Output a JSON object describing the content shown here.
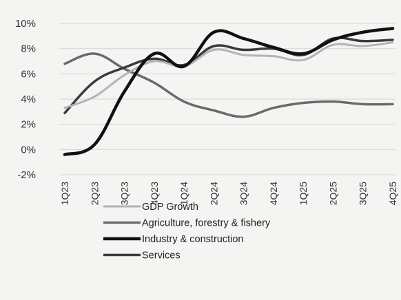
{
  "chart_data": {
    "type": "line",
    "categories": [
      "1Q23",
      "2Q23",
      "3Q23",
      "4Q23",
      "1Q24",
      "2Q24",
      "3Q24",
      "4Q24",
      "1Q25",
      "2Q25",
      "3Q25",
      "4Q25"
    ],
    "y_ticks": [
      "10%",
      "8%",
      "6%",
      "4%",
      "2%",
      "0%",
      "-2%"
    ],
    "y_tick_values": [
      10,
      8,
      6,
      4,
      2,
      0,
      -2
    ],
    "ylim": [
      -2,
      10
    ],
    "grid": true,
    "legend_position": "bottom",
    "series": [
      {
        "name": "GDP Growth",
        "color": "#b3b3b3",
        "values": [
          3.3,
          4.2,
          5.9,
          7.0,
          6.6,
          7.9,
          7.5,
          7.4,
          7.1,
          8.3,
          8.2,
          8.5
        ]
      },
      {
        "name": "Agriculture, forestry & fishery",
        "color": "#6a6a6a",
        "values": [
          6.8,
          7.6,
          6.4,
          5.3,
          3.8,
          3.1,
          2.6,
          3.3,
          3.7,
          3.8,
          3.6,
          3.6
        ]
      },
      {
        "name": "Industry & construction",
        "color": "#111111",
        "values": [
          -0.4,
          0.4,
          4.6,
          7.6,
          6.6,
          9.3,
          8.8,
          8.1,
          7.6,
          8.7,
          9.3,
          9.6
        ]
      },
      {
        "name": "Services",
        "color": "#3a3a3a",
        "values": [
          2.9,
          5.4,
          6.5,
          7.2,
          6.7,
          8.2,
          7.9,
          8.0,
          7.5,
          8.8,
          8.6,
          8.7
        ]
      }
    ]
  }
}
